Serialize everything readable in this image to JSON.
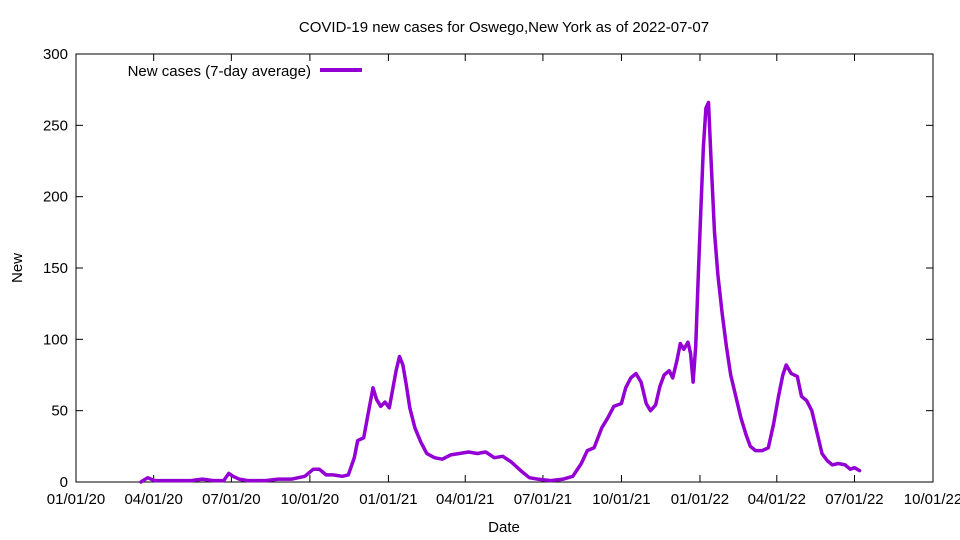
{
  "chart_data": {
    "type": "line",
    "title": "COVID-19 new cases for Oswego,New York as of 2022-07-07",
    "xlabel": "Date",
    "ylabel": "New",
    "xlim": [
      "2020-01-01",
      "2022-10-01"
    ],
    "ylim": [
      0,
      300
    ],
    "x_ticks": [
      "01/01/20",
      "04/01/20",
      "07/01/20",
      "10/01/20",
      "01/01/21",
      "04/01/21",
      "07/01/21",
      "10/01/21",
      "01/01/22",
      "04/01/22",
      "07/01/22",
      "10/01/22"
    ],
    "x_tick_dates": [
      "2020-01-01",
      "2020-04-01",
      "2020-07-01",
      "2020-10-01",
      "2021-01-01",
      "2021-04-01",
      "2021-07-01",
      "2021-10-01",
      "2022-01-01",
      "2022-04-01",
      "2022-07-01",
      "2022-10-01"
    ],
    "y_ticks": [
      0,
      50,
      100,
      150,
      200,
      250,
      300
    ],
    "grid": false,
    "legend_position": "top-left",
    "series": [
      {
        "name": "New cases (7-day average)",
        "color": "#9400d3",
        "points": [
          [
            "2020-03-17",
            0
          ],
          [
            "2020-03-25",
            3
          ],
          [
            "2020-04-02",
            1
          ],
          [
            "2020-04-12",
            1
          ],
          [
            "2020-04-25",
            1
          ],
          [
            "2020-05-15",
            1
          ],
          [
            "2020-05-28",
            2
          ],
          [
            "2020-06-10",
            1
          ],
          [
            "2020-06-22",
            1
          ],
          [
            "2020-06-28",
            6
          ],
          [
            "2020-07-03",
            4
          ],
          [
            "2020-07-10",
            2
          ],
          [
            "2020-07-20",
            1
          ],
          [
            "2020-08-10",
            1
          ],
          [
            "2020-08-25",
            2
          ],
          [
            "2020-09-10",
            2
          ],
          [
            "2020-09-25",
            4
          ],
          [
            "2020-10-05",
            9
          ],
          [
            "2020-10-12",
            9
          ],
          [
            "2020-10-20",
            5
          ],
          [
            "2020-10-28",
            5
          ],
          [
            "2020-11-08",
            4
          ],
          [
            "2020-11-15",
            5
          ],
          [
            "2020-11-22",
            17
          ],
          [
            "2020-11-26",
            29
          ],
          [
            "2020-12-03",
            31
          ],
          [
            "2020-12-08",
            47
          ],
          [
            "2020-12-14",
            66
          ],
          [
            "2020-12-18",
            58
          ],
          [
            "2020-12-23",
            53
          ],
          [
            "2020-12-28",
            56
          ],
          [
            "2021-01-02",
            52
          ],
          [
            "2021-01-06",
            65
          ],
          [
            "2021-01-10",
            78
          ],
          [
            "2021-01-14",
            88
          ],
          [
            "2021-01-18",
            82
          ],
          [
            "2021-01-22",
            68
          ],
          [
            "2021-01-26",
            52
          ],
          [
            "2021-02-01",
            38
          ],
          [
            "2021-02-08",
            28
          ],
          [
            "2021-02-15",
            20
          ],
          [
            "2021-02-24",
            17
          ],
          [
            "2021-03-05",
            16
          ],
          [
            "2021-03-15",
            19
          ],
          [
            "2021-03-25",
            20
          ],
          [
            "2021-04-05",
            21
          ],
          [
            "2021-04-15",
            20
          ],
          [
            "2021-04-25",
            21
          ],
          [
            "2021-05-05",
            17
          ],
          [
            "2021-05-15",
            18
          ],
          [
            "2021-05-25",
            14
          ],
          [
            "2021-06-05",
            8
          ],
          [
            "2021-06-15",
            3
          ],
          [
            "2021-06-25",
            2
          ],
          [
            "2021-07-10",
            1
          ],
          [
            "2021-07-25",
            2
          ],
          [
            "2021-08-05",
            4
          ],
          [
            "2021-08-15",
            13
          ],
          [
            "2021-08-22",
            22
          ],
          [
            "2021-08-30",
            24
          ],
          [
            "2021-09-08",
            38
          ],
          [
            "2021-09-15",
            45
          ],
          [
            "2021-09-22",
            53
          ],
          [
            "2021-10-01",
            55
          ],
          [
            "2021-10-06",
            66
          ],
          [
            "2021-10-12",
            73
          ],
          [
            "2021-10-18",
            76
          ],
          [
            "2021-10-24",
            70
          ],
          [
            "2021-10-30",
            55
          ],
          [
            "2021-11-04",
            50
          ],
          [
            "2021-11-10",
            54
          ],
          [
            "2021-11-15",
            67
          ],
          [
            "2021-11-20",
            75
          ],
          [
            "2021-11-26",
            78
          ],
          [
            "2021-11-30",
            73
          ],
          [
            "2021-12-05",
            85
          ],
          [
            "2021-12-09",
            97
          ],
          [
            "2021-12-13",
            93
          ],
          [
            "2021-12-18",
            98
          ],
          [
            "2021-12-21",
            90
          ],
          [
            "2021-12-24",
            70
          ],
          [
            "2021-12-27",
            95
          ],
          [
            "2021-12-30",
            145
          ],
          [
            "2022-01-02",
            190
          ],
          [
            "2022-01-05",
            235
          ],
          [
            "2022-01-08",
            262
          ],
          [
            "2022-01-11",
            266
          ],
          [
            "2022-01-14",
            225
          ],
          [
            "2022-01-18",
            175
          ],
          [
            "2022-01-22",
            145
          ],
          [
            "2022-01-27",
            118
          ],
          [
            "2022-02-01",
            95
          ],
          [
            "2022-02-06",
            75
          ],
          [
            "2022-02-12",
            60
          ],
          [
            "2022-02-18",
            45
          ],
          [
            "2022-02-24",
            33
          ],
          [
            "2022-03-01",
            25
          ],
          [
            "2022-03-07",
            22
          ],
          [
            "2022-03-15",
            22
          ],
          [
            "2022-03-22",
            24
          ],
          [
            "2022-03-28",
            40
          ],
          [
            "2022-04-03",
            60
          ],
          [
            "2022-04-08",
            75
          ],
          [
            "2022-04-12",
            82
          ],
          [
            "2022-04-18",
            76
          ],
          [
            "2022-04-25",
            74
          ],
          [
            "2022-04-30",
            60
          ],
          [
            "2022-05-06",
            57
          ],
          [
            "2022-05-12",
            50
          ],
          [
            "2022-05-18",
            35
          ],
          [
            "2022-05-24",
            20
          ],
          [
            "2022-05-30",
            15
          ],
          [
            "2022-06-05",
            12
          ],
          [
            "2022-06-12",
            13
          ],
          [
            "2022-06-20",
            12
          ],
          [
            "2022-06-26",
            9
          ],
          [
            "2022-07-01",
            10
          ],
          [
            "2022-07-07",
            8
          ]
        ]
      }
    ]
  }
}
